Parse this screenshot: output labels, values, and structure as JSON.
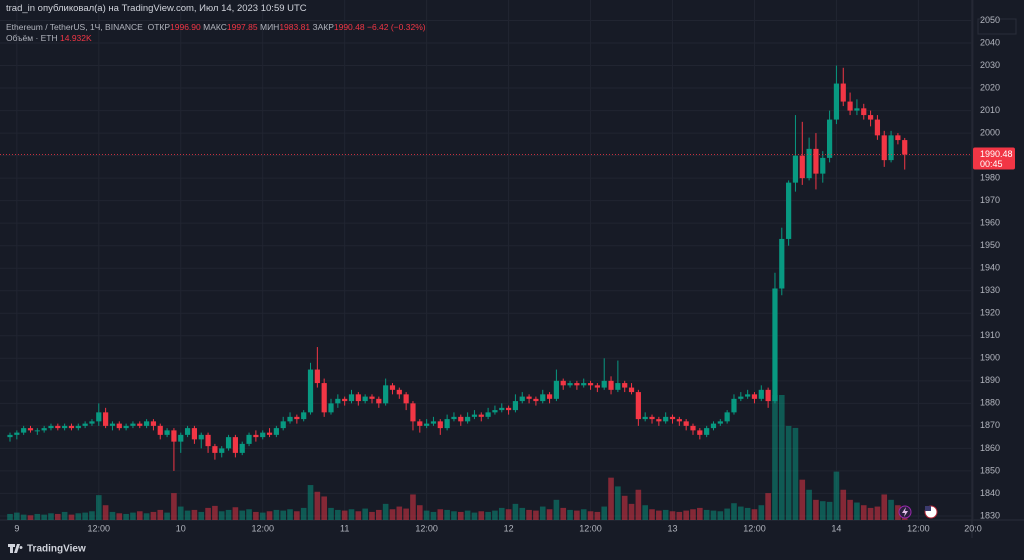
{
  "header": {
    "published": "trad_in опубликовал(а) на TradingView.com, Июл 14, 2023 10:59 UTC"
  },
  "legend": {
    "symbol": "Ethereum / TetherUS, 1Ч, BINANCE",
    "open_label": "ОТКР",
    "open": "1996.90",
    "high_label": "МАКС",
    "high": "1997.85",
    "low_label": "МИН",
    "low": "1983.81",
    "close_label": "ЗАКР",
    "close": "1990.48",
    "change": "−6.42 (−0.32%)",
    "volume_label": "Объём · ETH",
    "volume": "14.932K"
  },
  "footer": {
    "brand": "TradingView"
  },
  "chart_data": {
    "type": "candlestick",
    "up_color": "#089981",
    "down_color": "#f23645",
    "ylim": [
      1828.2,
      2059.1
    ],
    "yticks": [
      1830,
      1840,
      1850,
      1860,
      1870,
      1880,
      1890,
      1900,
      1910,
      1920,
      1930,
      1940,
      1950,
      1960,
      1970,
      1980,
      1990,
      2000,
      2010,
      2020,
      2030,
      2040,
      2050
    ],
    "xticks": [
      {
        "value": 1,
        "label": "9"
      },
      {
        "value": 13,
        "label": "12:00"
      },
      {
        "value": 25,
        "label": "10"
      },
      {
        "value": 37,
        "label": "12:00"
      },
      {
        "value": 49,
        "label": "11"
      },
      {
        "value": 61,
        "label": "12:00"
      },
      {
        "value": 73,
        "label": "12"
      },
      {
        "value": 85,
        "label": "12:00"
      },
      {
        "value": 97,
        "label": "13"
      },
      {
        "value": 109,
        "label": "12:00"
      },
      {
        "value": 121,
        "label": "14"
      },
      {
        "value": 133,
        "label": "12:00"
      },
      {
        "value": 141,
        "label": "20:0"
      }
    ],
    "last_price": {
      "value": 1990.48,
      "label": "1990.48",
      "countdown": "00:45"
    },
    "ohlc": [
      [
        1865,
        1867,
        1863,
        1866
      ],
      [
        1866,
        1868,
        1864,
        1867
      ],
      [
        1867,
        1870,
        1866,
        1869
      ],
      [
        1869,
        1870,
        1867,
        1868
      ],
      [
        1868,
        1869,
        1866,
        1868
      ],
      [
        1868,
        1870,
        1867,
        1869
      ],
      [
        1869,
        1871,
        1868,
        1870
      ],
      [
        1870,
        1871,
        1868,
        1869
      ],
      [
        1869,
        1871,
        1868,
        1870
      ],
      [
        1870,
        1871,
        1868,
        1869
      ],
      [
        1869,
        1871,
        1868,
        1870
      ],
      [
        1870,
        1872,
        1869,
        1871
      ],
      [
        1871,
        1873,
        1870,
        1872
      ],
      [
        1872,
        1880,
        1870,
        1876
      ],
      [
        1876,
        1878,
        1869,
        1870
      ],
      [
        1870,
        1872,
        1868,
        1871
      ],
      [
        1871,
        1872,
        1868,
        1869
      ],
      [
        1869,
        1871,
        1868,
        1870
      ],
      [
        1870,
        1872,
        1869,
        1871
      ],
      [
        1871,
        1872,
        1869,
        1870
      ],
      [
        1870,
        1873,
        1869,
        1872
      ],
      [
        1872,
        1873,
        1868,
        1870
      ],
      [
        1870,
        1871,
        1864,
        1866
      ],
      [
        1866,
        1869,
        1865,
        1868
      ],
      [
        1868,
        1869,
        1850,
        1863
      ],
      [
        1863,
        1867,
        1858,
        1866
      ],
      [
        1866,
        1870,
        1865,
        1869
      ],
      [
        1869,
        1870,
        1862,
        1864
      ],
      [
        1864,
        1867,
        1860,
        1866
      ],
      [
        1866,
        1867,
        1858,
        1861
      ],
      [
        1861,
        1862,
        1855,
        1858
      ],
      [
        1858,
        1861,
        1856,
        1860
      ],
      [
        1860,
        1866,
        1859,
        1865
      ],
      [
        1865,
        1866,
        1856,
        1858
      ],
      [
        1858,
        1863,
        1857,
        1862
      ],
      [
        1862,
        1867,
        1861,
        1866
      ],
      [
        1866,
        1868,
        1863,
        1865
      ],
      [
        1865,
        1868,
        1864,
        1867
      ],
      [
        1867,
        1869,
        1865,
        1866
      ],
      [
        1866,
        1870,
        1865,
        1869
      ],
      [
        1869,
        1874,
        1868,
        1872
      ],
      [
        1872,
        1876,
        1871,
        1874
      ],
      [
        1874,
        1875,
        1871,
        1873
      ],
      [
        1873,
        1877,
        1872,
        1876
      ],
      [
        1876,
        1898,
        1875,
        1895
      ],
      [
        1895,
        1905,
        1887,
        1889
      ],
      [
        1889,
        1891,
        1874,
        1876
      ],
      [
        1876,
        1882,
        1875,
        1880
      ],
      [
        1880,
        1884,
        1878,
        1882
      ],
      [
        1882,
        1883,
        1879,
        1881
      ],
      [
        1881,
        1886,
        1880,
        1884
      ],
      [
        1884,
        1885,
        1879,
        1881
      ],
      [
        1881,
        1884,
        1880,
        1883
      ],
      [
        1883,
        1884,
        1880,
        1882
      ],
      [
        1882,
        1883,
        1878,
        1880
      ],
      [
        1880,
        1891,
        1879,
        1888
      ],
      [
        1888,
        1889,
        1884,
        1886
      ],
      [
        1886,
        1887,
        1882,
        1884
      ],
      [
        1884,
        1885,
        1877,
        1880
      ],
      [
        1880,
        1881,
        1868,
        1872
      ],
      [
        1872,
        1873,
        1867,
        1870
      ],
      [
        1870,
        1873,
        1869,
        1871
      ],
      [
        1871,
        1874,
        1870,
        1872
      ],
      [
        1872,
        1873,
        1866,
        1869
      ],
      [
        1869,
        1875,
        1868,
        1873
      ],
      [
        1873,
        1876,
        1872,
        1874
      ],
      [
        1874,
        1875,
        1870,
        1872
      ],
      [
        1872,
        1876,
        1871,
        1874
      ],
      [
        1874,
        1877,
        1873,
        1875
      ],
      [
        1875,
        1876,
        1872,
        1874
      ],
      [
        1874,
        1878,
        1873,
        1876
      ],
      [
        1876,
        1879,
        1875,
        1877
      ],
      [
        1877,
        1880,
        1876,
        1878
      ],
      [
        1878,
        1879,
        1875,
        1877
      ],
      [
        1877,
        1884,
        1876,
        1881
      ],
      [
        1881,
        1885,
        1880,
        1883
      ],
      [
        1883,
        1884,
        1880,
        1882
      ],
      [
        1882,
        1883,
        1879,
        1881
      ],
      [
        1881,
        1886,
        1880,
        1884
      ],
      [
        1884,
        1885,
        1880,
        1882
      ],
      [
        1882,
        1895,
        1881,
        1890
      ],
      [
        1890,
        1891,
        1886,
        1888
      ],
      [
        1888,
        1890,
        1887,
        1889
      ],
      [
        1889,
        1890,
        1886,
        1888
      ],
      [
        1888,
        1891,
        1887,
        1889
      ],
      [
        1889,
        1890,
        1886,
        1888
      ],
      [
        1888,
        1889,
        1885,
        1887
      ],
      [
        1887,
        1900,
        1886,
        1890
      ],
      [
        1890,
        1892,
        1884,
        1886
      ],
      [
        1886,
        1899,
        1885,
        1889
      ],
      [
        1889,
        1890,
        1885,
        1887
      ],
      [
        1887,
        1889,
        1884,
        1885
      ],
      [
        1885,
        1886,
        1870,
        1873
      ],
      [
        1873,
        1876,
        1872,
        1874
      ],
      [
        1874,
        1875,
        1871,
        1873
      ],
      [
        1873,
        1874,
        1870,
        1872
      ],
      [
        1872,
        1876,
        1871,
        1874
      ],
      [
        1874,
        1875,
        1871,
        1873
      ],
      [
        1873,
        1874,
        1870,
        1872
      ],
      [
        1872,
        1873,
        1868,
        1870
      ],
      [
        1870,
        1871,
        1866,
        1868
      ],
      [
        1868,
        1869,
        1864,
        1866
      ],
      [
        1866,
        1870,
        1865,
        1869
      ],
      [
        1869,
        1872,
        1868,
        1871
      ],
      [
        1871,
        1873,
        1870,
        1872
      ],
      [
        1872,
        1877,
        1871,
        1876
      ],
      [
        1876,
        1884,
        1875,
        1882
      ],
      [
        1882,
        1885,
        1881,
        1883
      ],
      [
        1883,
        1886,
        1882,
        1884
      ],
      [
        1884,
        1885,
        1880,
        1882
      ],
      [
        1882,
        1888,
        1881,
        1886
      ],
      [
        1886,
        1887,
        1878,
        1881
      ],
      [
        1881,
        1938,
        1880,
        1931
      ],
      [
        1931,
        1958,
        1928,
        1953
      ],
      [
        1953,
        1979,
        1950,
        1978
      ],
      [
        1978,
        2008,
        1974,
        1990
      ],
      [
        1990,
        2005,
        1977,
        1980
      ],
      [
        1980,
        1998,
        1979,
        1993
      ],
      [
        1993,
        2000,
        1975,
        1982
      ],
      [
        1982,
        1992,
        1978,
        1989
      ],
      [
        1989,
        2010,
        1987,
        2006
      ],
      [
        2006,
        2030,
        2004,
        2022
      ],
      [
        2022,
        2029,
        2012,
        2014
      ],
      [
        2014,
        2018,
        2008,
        2010
      ],
      [
        2010,
        2015,
        2008,
        2011
      ],
      [
        2011,
        2013,
        2006,
        2008
      ],
      [
        2008,
        2010,
        2003,
        2006
      ],
      [
        2006,
        2008,
        1997,
        1999
      ],
      [
        1999,
        2001,
        1985,
        1988
      ],
      [
        1988,
        2001,
        1987,
        1999
      ],
      [
        1999,
        2000,
        1995,
        1996.9
      ],
      [
        1996.9,
        1997.85,
        1983.81,
        1990.48
      ]
    ],
    "volume": [
      9000,
      11000,
      8000,
      7000,
      9000,
      8000,
      10000,
      9000,
      12000,
      8000,
      10000,
      11000,
      13000,
      37000,
      22000,
      12000,
      10000,
      9000,
      11000,
      13000,
      10000,
      12000,
      15000,
      11000,
      40000,
      20000,
      14000,
      15000,
      12000,
      18000,
      21000,
      13000,
      15000,
      19000,
      14000,
      16000,
      12000,
      11000,
      13000,
      15000,
      14000,
      16000,
      13000,
      18000,
      52000,
      42000,
      35000,
      18000,
      15000,
      14000,
      16000,
      13000,
      17000,
      12000,
      15000,
      24000,
      16000,
      20000,
      17000,
      38000,
      22000,
      14000,
      12000,
      16000,
      15000,
      13000,
      12000,
      14000,
      11000,
      13000,
      12000,
      14000,
      18000,
      16000,
      24000,
      18000,
      15000,
      14000,
      20000,
      16000,
      30000,
      18000,
      15000,
      14000,
      16000,
      13000,
      12000,
      20000,
      63000,
      50000,
      36000,
      24000,
      45000,
      22000,
      16000,
      14000,
      15000,
      13000,
      12000,
      14000,
      16000,
      18000,
      15000,
      14000,
      13000,
      17000,
      25000,
      20000,
      18000,
      16000,
      22000,
      40000,
      186000,
      186000,
      140000,
      137000,
      60000,
      45000,
      30000,
      28000,
      27000,
      72000,
      45000,
      30000,
      26000,
      22000,
      18000,
      20000,
      38000,
      30000,
      22000,
      14932
    ]
  }
}
